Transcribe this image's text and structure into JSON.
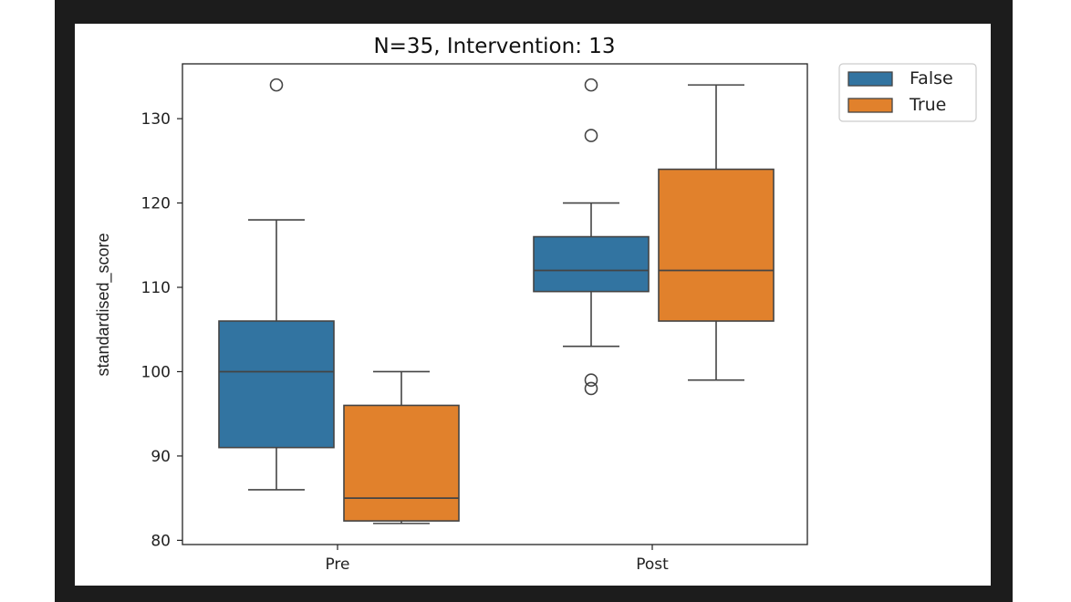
{
  "colors": {
    "false_series": "#3274a1",
    "true_series": "#e1812c",
    "line": "#444444",
    "frame": "#1c1c1c"
  },
  "chart_data": {
    "type": "box",
    "title": "N=35, Intervention: 13",
    "xlabel": "",
    "ylabel": "standardised_score",
    "categories": [
      "Pre",
      "Post"
    ],
    "ylim": [
      79.5,
      136.5
    ],
    "yticks": [
      80,
      90,
      100,
      110,
      120,
      130
    ],
    "grid": false,
    "legend_position": "outside-top-right",
    "series": [
      {
        "name": "False",
        "boxes": [
          {
            "category": "Pre",
            "whislo": 86,
            "q1": 91,
            "med": 100,
            "q3": 106,
            "whishi": 118,
            "fliers": [
              134
            ]
          },
          {
            "category": "Post",
            "whislo": 103,
            "q1": 109.5,
            "med": 112,
            "q3": 116,
            "whishi": 120,
            "fliers": [
              134,
              128,
              99,
              98
            ]
          }
        ]
      },
      {
        "name": "True",
        "boxes": [
          {
            "category": "Pre",
            "whislo": 82,
            "q1": 82.3,
            "med": 85,
            "q3": 96,
            "whishi": 100,
            "fliers": []
          },
          {
            "category": "Post",
            "whislo": 99,
            "q1": 106,
            "med": 112,
            "q3": 124,
            "whishi": 134,
            "fliers": []
          }
        ]
      }
    ]
  }
}
